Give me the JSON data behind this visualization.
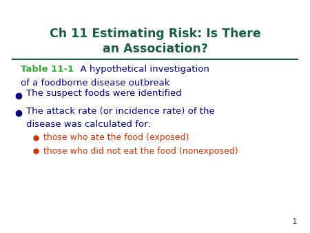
{
  "title_line1": "Ch 11 Estimating Risk: Is There",
  "title_line2": "an Association?",
  "title_color": "#1a5c46",
  "background_color": "#ffffff",
  "border_color": "#5a9090",
  "separator_color": "#1a5c46",
  "table_label": "Table 11-1",
  "table_label_color": "#33aa33",
  "table_rest": "  A hypothetical investigation",
  "table_line2": "of a foodborne disease outbreak",
  "table_text_color": "#000080",
  "bullet_color": "#000080",
  "bullet1": "The suspect foods were identified",
  "bullet2_line1": "The attack rate (or incidence rate) of the",
  "bullet2_line2": "disease was calculated for:",
  "sub_bullet_color": "#cc3300",
  "sub_bullet1": "those who ate the food (exposed)",
  "sub_bullet2": "those who did not eat the food (nonexposed)",
  "page_number": "1",
  "page_number_color": "#555555",
  "title_fontsize": 12.5,
  "body_fontsize": 9.5,
  "sub_fontsize": 9.0
}
